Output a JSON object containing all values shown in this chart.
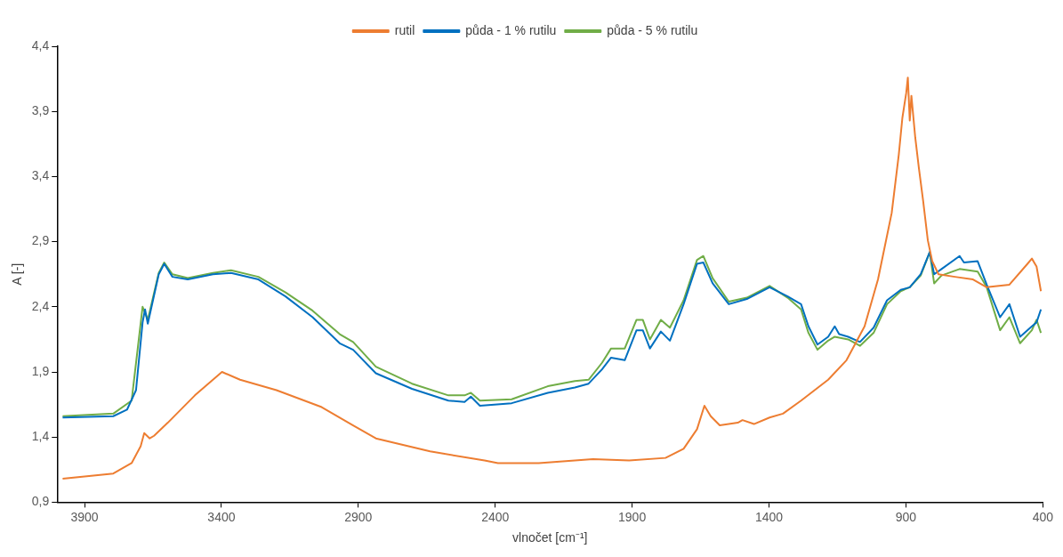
{
  "chart_data": {
    "type": "line",
    "xlabel": "vlnočet [cm⁻¹]",
    "ylabel": "A [-]",
    "xlim": [
      4000,
      400
    ],
    "xticks": [
      3900,
      3400,
      2900,
      2400,
      1900,
      1400,
      900,
      400
    ],
    "ylim": [
      0.9,
      4.4
    ],
    "yticks": [
      {
        "value": 0.9,
        "label": "0,9"
      },
      {
        "value": 1.4,
        "label": "1,4"
      },
      {
        "value": 1.9,
        "label": "1,9"
      },
      {
        "value": 2.4,
        "label": "2,4"
      },
      {
        "value": 2.9,
        "label": "2,9"
      },
      {
        "value": 3.4,
        "label": "3,4"
      },
      {
        "value": 3.9,
        "label": "3,9"
      },
      {
        "value": 4.4,
        "label": "4,4"
      }
    ],
    "grid": false,
    "legend": "top",
    "marker": "none",
    "line_style": "solid",
    "series": [
      {
        "name": "rutil",
        "color": "#ed7d31",
        "x": [
          3980,
          3795,
          3728,
          3695,
          3682,
          3662,
          3646,
          3596,
          3497,
          3398,
          3332,
          3199,
          3034,
          2919,
          2836,
          2638,
          2439,
          2390,
          2241,
          2043,
          1911,
          1778,
          1712,
          1663,
          1636,
          1613,
          1580,
          1514,
          1497,
          1455,
          1398,
          1349,
          1283,
          1184,
          1117,
          1051,
          1002,
          952,
          926,
          913,
          899,
          893,
          886,
          880,
          866,
          853,
          837,
          820,
          804,
          781,
          721,
          655,
          605,
          522,
          456,
          440,
          423,
          407
        ],
        "values": [
          1.08,
          1.12,
          1.2,
          1.33,
          1.43,
          1.39,
          1.41,
          1.51,
          1.72,
          1.9,
          1.84,
          1.76,
          1.63,
          1.49,
          1.39,
          1.29,
          1.22,
          1.2,
          1.2,
          1.23,
          1.22,
          1.24,
          1.31,
          1.46,
          1.64,
          1.56,
          1.49,
          1.51,
          1.53,
          1.5,
          1.55,
          1.58,
          1.68,
          1.84,
          1.99,
          2.25,
          2.61,
          3.12,
          3.57,
          3.85,
          4.04,
          4.16,
          3.83,
          4.02,
          3.7,
          3.47,
          3.21,
          2.91,
          2.75,
          2.65,
          2.63,
          2.61,
          2.55,
          2.57,
          2.73,
          2.77,
          2.71,
          2.52
        ]
      },
      {
        "name": "půda - 1 % rutilu",
        "color": "#0070c0",
        "x": [
          3980,
          3795,
          3745,
          3712,
          3688,
          3679,
          3669,
          3629,
          3609,
          3579,
          3523,
          3431,
          3365,
          3265,
          3166,
          3067,
          2968,
          2919,
          2836,
          2704,
          2571,
          2512,
          2489,
          2456,
          2340,
          2208,
          2109,
          2059,
          2010,
          1977,
          1927,
          1884,
          1861,
          1835,
          1795,
          1762,
          1712,
          1663,
          1640,
          1606,
          1547,
          1481,
          1398,
          1332,
          1283,
          1256,
          1223,
          1184,
          1160,
          1144,
          1111,
          1068,
          1018,
          969,
          919,
          886,
          846,
          813,
          797,
          770,
          704,
          688,
          638,
          605,
          556,
          522,
          483,
          440,
          423,
          407
        ],
        "values": [
          1.55,
          1.56,
          1.61,
          1.76,
          2.28,
          2.38,
          2.27,
          2.65,
          2.73,
          2.63,
          2.61,
          2.65,
          2.66,
          2.61,
          2.48,
          2.32,
          2.12,
          2.07,
          1.89,
          1.77,
          1.68,
          1.67,
          1.71,
          1.64,
          1.66,
          1.74,
          1.78,
          1.81,
          1.92,
          2.01,
          1.99,
          2.22,
          2.22,
          2.08,
          2.21,
          2.14,
          2.42,
          2.73,
          2.74,
          2.58,
          2.42,
          2.46,
          2.55,
          2.48,
          2.42,
          2.25,
          2.11,
          2.17,
          2.25,
          2.19,
          2.17,
          2.13,
          2.24,
          2.45,
          2.53,
          2.55,
          2.65,
          2.82,
          2.65,
          2.69,
          2.79,
          2.74,
          2.75,
          2.57,
          2.32,
          2.42,
          2.17,
          2.25,
          2.28,
          2.38
        ]
      },
      {
        "name": "půda - 5 % rutilu",
        "color": "#70ad47",
        "x": [
          3980,
          3795,
          3728,
          3688,
          3669,
          3629,
          3609,
          3579,
          3523,
          3431,
          3365,
          3265,
          3166,
          3067,
          2968,
          2919,
          2836,
          2704,
          2571,
          2512,
          2489,
          2456,
          2340,
          2208,
          2109,
          2059,
          2010,
          1977,
          1927,
          1884,
          1861,
          1835,
          1795,
          1762,
          1712,
          1663,
          1640,
          1606,
          1547,
          1481,
          1398,
          1332,
          1283,
          1256,
          1223,
          1184,
          1160,
          1111,
          1068,
          1018,
          969,
          919,
          886,
          846,
          813,
          797,
          770,
          704,
          638,
          605,
          556,
          522,
          483,
          440,
          423,
          407
        ],
        "values": [
          1.56,
          1.58,
          1.68,
          2.4,
          2.3,
          2.66,
          2.74,
          2.65,
          2.62,
          2.66,
          2.68,
          2.63,
          2.51,
          2.37,
          2.19,
          2.13,
          1.94,
          1.81,
          1.72,
          1.72,
          1.74,
          1.68,
          1.69,
          1.79,
          1.83,
          1.84,
          1.97,
          2.08,
          2.08,
          2.3,
          2.3,
          2.15,
          2.3,
          2.24,
          2.45,
          2.76,
          2.79,
          2.62,
          2.44,
          2.47,
          2.56,
          2.47,
          2.38,
          2.2,
          2.07,
          2.14,
          2.17,
          2.15,
          2.1,
          2.2,
          2.42,
          2.52,
          2.55,
          2.64,
          2.82,
          2.58,
          2.64,
          2.69,
          2.67,
          2.55,
          2.22,
          2.32,
          2.12,
          2.22,
          2.3,
          2.2
        ]
      }
    ]
  }
}
